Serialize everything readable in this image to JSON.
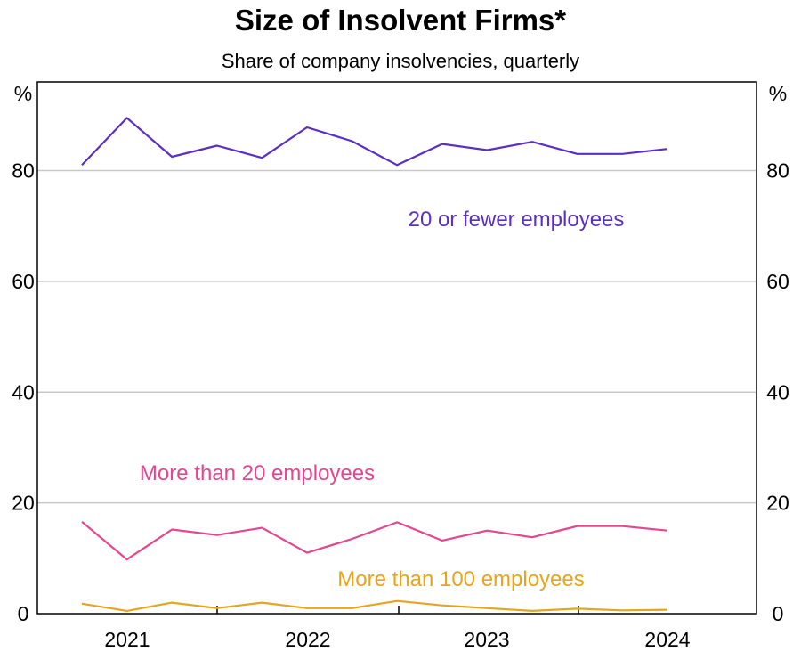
{
  "chart_data": {
    "type": "line",
    "title": "Size of Insolvent Firms*",
    "subtitle": "Share of company insolvencies, quarterly",
    "y_unit_left": "%",
    "y_unit_right": "%",
    "ylim": [
      0,
      96
    ],
    "yticks": [
      0,
      20,
      40,
      60,
      80
    ],
    "xticks": [
      "2021",
      "2022",
      "2023",
      "2024"
    ],
    "x": [
      "2020-Q4",
      "2021-Q1",
      "2021-Q2",
      "2021-Q3",
      "2021-Q4",
      "2022-Q1",
      "2022-Q2",
      "2022-Q3",
      "2022-Q4",
      "2023-Q1",
      "2023-Q2",
      "2023-Q3",
      "2023-Q4",
      "2024-Q1"
    ],
    "grid": true,
    "series": [
      {
        "name": "20 or fewer employees",
        "color": "#5b2fc4",
        "values": [
          81.0,
          89.5,
          82.5,
          84.5,
          82.3,
          87.8,
          85.3,
          81.0,
          84.8,
          83.7,
          85.2,
          83.0,
          83.0,
          83.9
        ]
      },
      {
        "name": "More than 20 employees",
        "color": "#e5468f",
        "values": [
          16.6,
          9.8,
          15.2,
          14.2,
          15.5,
          11.0,
          13.5,
          16.5,
          13.2,
          15.0,
          13.8,
          15.8,
          15.8,
          15.0
        ]
      },
      {
        "name": "More than 100 employees",
        "color": "#e6a51f",
        "values": [
          1.8,
          0.5,
          2.0,
          1.0,
          2.0,
          1.0,
          1.0,
          2.3,
          1.5,
          1.0,
          0.5,
          0.9,
          0.6,
          0.7
        ]
      }
    ]
  }
}
